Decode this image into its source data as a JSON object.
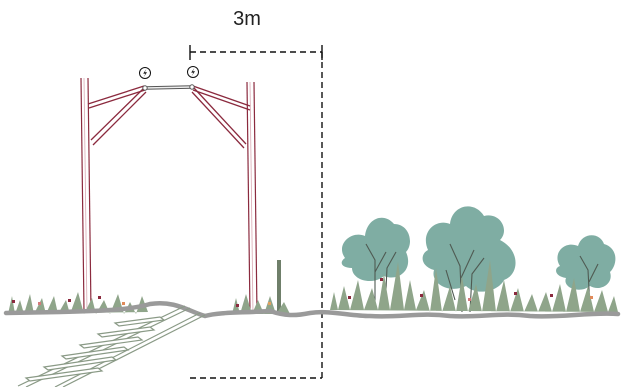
{
  "dimension": {
    "label": "3m"
  },
  "icons": {
    "left": "lightning-icon",
    "right": "lightning-icon"
  },
  "colors": {
    "pole": "#8b2a3e",
    "tree": "#7fada3",
    "ground": "#9a9a9a",
    "grass": "#8fa58a",
    "dimension_line": "#111111"
  }
}
